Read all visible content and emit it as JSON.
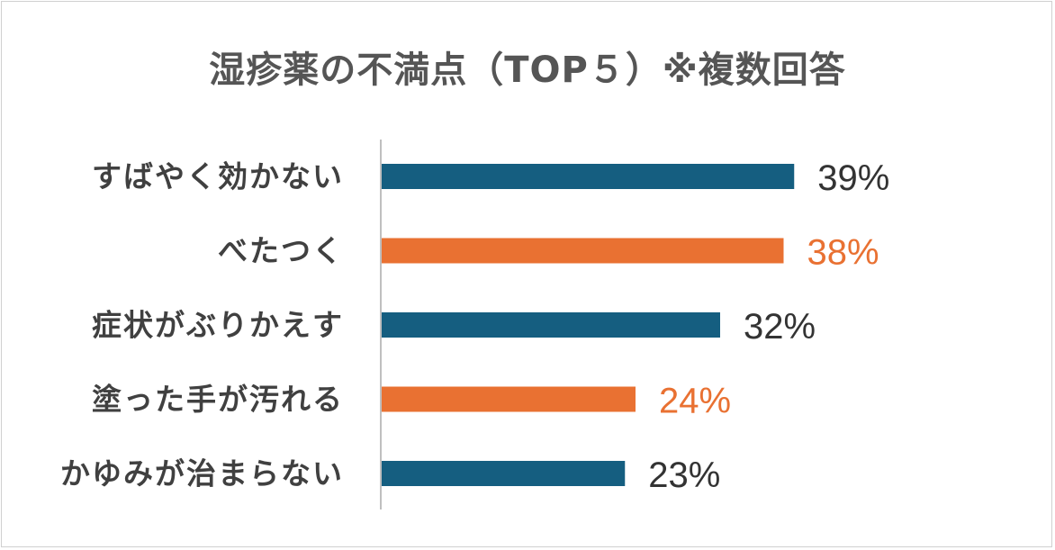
{
  "chart_data": {
    "type": "bar",
    "orientation": "horizontal",
    "title": "湿疹薬の不満点（TOP５）※複数回答",
    "categories": [
      "すばやく効かない",
      "べたつく",
      "症状がぶりかえす",
      "塗った手が汚れる",
      "かゆみが治まらない"
    ],
    "values": [
      39,
      38,
      32,
      24,
      23
    ],
    "value_labels": [
      "39%",
      "38%",
      "32%",
      "24%",
      "23%"
    ],
    "bar_colors": [
      "#155e80",
      "#e97132",
      "#155e80",
      "#e97132",
      "#155e80"
    ],
    "label_colors": [
      "#333333",
      "#e97132",
      "#333333",
      "#e97132",
      "#333333"
    ],
    "unit": "%",
    "xlabel": "",
    "ylabel": "",
    "grid": false,
    "legend": "none"
  }
}
